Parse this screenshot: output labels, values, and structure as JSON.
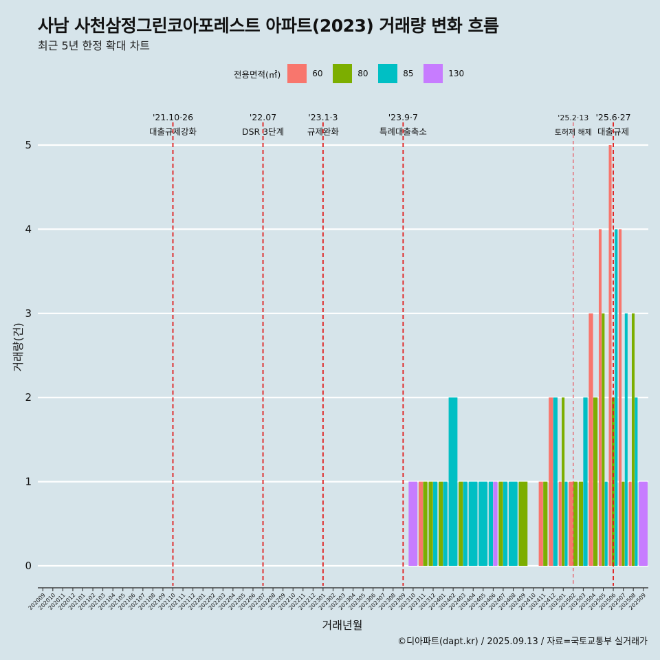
{
  "title": "사남 사천삼정그린코아포레스트 아파트(2023) 거래량 변화 흐름",
  "subtitle": "최근 5년 한정 확대 차트",
  "caption": "©디아파트(dapt.kr) / 2025.09.13 / 자료=국토교통부 실거래가",
  "legend": {
    "title": "전용면적(㎡)",
    "items": [
      {
        "label": "60",
        "color": "#f8766d"
      },
      {
        "label": "80",
        "color": "#7cae00"
      },
      {
        "label": "85",
        "color": "#00bfc4"
      },
      {
        "label": "130",
        "color": "#c77cff"
      }
    ]
  },
  "chart_data": {
    "type": "bar",
    "xlabel": "거래년월",
    "ylabel": "거래량(건)",
    "ylim": [
      0,
      5
    ],
    "yticks": [
      0,
      1,
      2,
      3,
      4,
      5
    ],
    "grid": true,
    "legend_position": "top",
    "categories": [
      "202009",
      "202010",
      "202011",
      "202012",
      "202101",
      "202102",
      "202103",
      "202104",
      "202105",
      "202106",
      "202107",
      "202108",
      "202109",
      "202110",
      "202111",
      "202112",
      "202201",
      "202202",
      "202203",
      "202204",
      "202205",
      "202206",
      "202207",
      "202208",
      "202209",
      "202210",
      "202211",
      "202212",
      "202301",
      "202302",
      "202303",
      "202304",
      "202305",
      "202306",
      "202307",
      "202308",
      "202309",
      "202310",
      "202311",
      "202312",
      "202401",
      "202402",
      "202403",
      "202404",
      "202405",
      "202406",
      "202407",
      "202408",
      "202409",
      "202410",
      "202411",
      "202412",
      "202501",
      "202502",
      "202503",
      "202504",
      "202505",
      "202506",
      "202507",
      "202508",
      "202509"
    ],
    "series": [
      {
        "name": "60",
        "color": "#f8766d",
        "data": [
          [
            "202311",
            1
          ],
          [
            "202411",
            1
          ],
          [
            "202412",
            2
          ],
          [
            "202501",
            1
          ],
          [
            "202502",
            1
          ],
          [
            "202504",
            3
          ],
          [
            "202505",
            4
          ],
          [
            "202506",
            5
          ],
          [
            "202507",
            4
          ],
          [
            "202508",
            1
          ]
        ]
      },
      {
        "name": "80",
        "color": "#7cae00",
        "data": [
          [
            "202311",
            1
          ],
          [
            "202312",
            1
          ],
          [
            "202401",
            1
          ],
          [
            "202403",
            1
          ],
          [
            "202407",
            1
          ],
          [
            "202409",
            1
          ],
          [
            "202411",
            1
          ],
          [
            "202501",
            2
          ],
          [
            "202502",
            1
          ],
          [
            "202503",
            1
          ],
          [
            "202504",
            2
          ],
          [
            "202505",
            3
          ],
          [
            "202506",
            2
          ],
          [
            "202507",
            1
          ],
          [
            "202508",
            3
          ]
        ]
      },
      {
        "name": "85",
        "color": "#00bfc4",
        "data": [
          [
            "202312",
            1
          ],
          [
            "202401",
            1
          ],
          [
            "202402",
            2
          ],
          [
            "202403",
            1
          ],
          [
            "202404",
            1
          ],
          [
            "202405",
            1
          ],
          [
            "202406",
            1
          ],
          [
            "202407",
            1
          ],
          [
            "202408",
            1
          ],
          [
            "202412",
            2
          ],
          [
            "202501",
            1
          ],
          [
            "202503",
            2
          ],
          [
            "202505",
            1
          ],
          [
            "202506",
            4
          ],
          [
            "202507",
            3
          ],
          [
            "202508",
            2
          ]
        ]
      },
      {
        "name": "130",
        "color": "#c77cff",
        "data": [
          [
            "202310",
            1
          ],
          [
            "202406",
            1
          ],
          [
            "202509",
            1
          ]
        ]
      }
    ],
    "annotations": [
      {
        "month": "202110",
        "date": "'21.10·26",
        "label": "대출규제강화"
      },
      {
        "month": "202207",
        "date": "'22.07",
        "label": "DSR 3단계"
      },
      {
        "month": "202301",
        "date": "'23.1·3",
        "label": "규제완화"
      },
      {
        "month": "202309",
        "date": "'23.9·7",
        "label": "특례대출축소"
      },
      {
        "month": "202502",
        "date": "'25.2·13",
        "label": "토허제 해제"
      },
      {
        "month": "202506",
        "date": "'25.6·27",
        "label": "대출규제"
      }
    ]
  }
}
